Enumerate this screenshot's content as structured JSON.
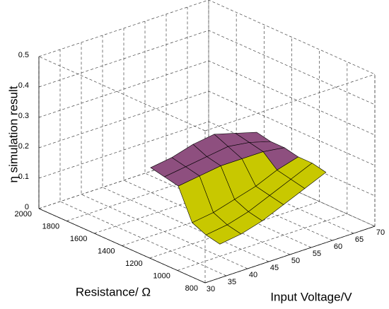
{
  "chart_data": {
    "type": "surface",
    "xlabel": "Input Voltage/V",
    "ylabel": "Resistance/ Ω",
    "zlabel": "η simulation result",
    "x": [
      40,
      45,
      50,
      55,
      60,
      65
    ],
    "y": [
      1000,
      1100,
      1200,
      1300,
      1400,
      1500
    ],
    "z": [
      [
        0.04,
        0.05,
        0.07,
        0.1,
        0.13,
        0.16
      ],
      [
        0.05,
        0.06,
        0.08,
        0.11,
        0.14,
        0.17
      ],
      [
        0.07,
        0.08,
        0.1,
        0.12,
        0.15,
        0.17
      ],
      [
        0.17,
        0.18,
        0.19,
        0.19,
        0.19,
        0.18
      ],
      [
        0.18,
        0.19,
        0.2,
        0.21,
        0.2,
        0.18
      ],
      [
        0.19,
        0.2,
        0.22,
        0.23,
        0.21,
        0.19
      ]
    ],
    "colors": [
      "#c8c800",
      "#8e4f7f"
    ],
    "xlim": [
      30,
      70
    ],
    "ylim": [
      800,
      2000
    ],
    "zlim": [
      0,
      0.5
    ],
    "xticks": [
      30,
      35,
      40,
      45,
      50,
      55,
      60,
      65,
      70
    ],
    "yticks": [
      800,
      1000,
      1200,
      1400,
      1600,
      1800,
      2000
    ],
    "zticks": [
      0,
      0.1,
      0.2,
      0.3,
      0.4,
      0.5
    ],
    "grid": true
  }
}
